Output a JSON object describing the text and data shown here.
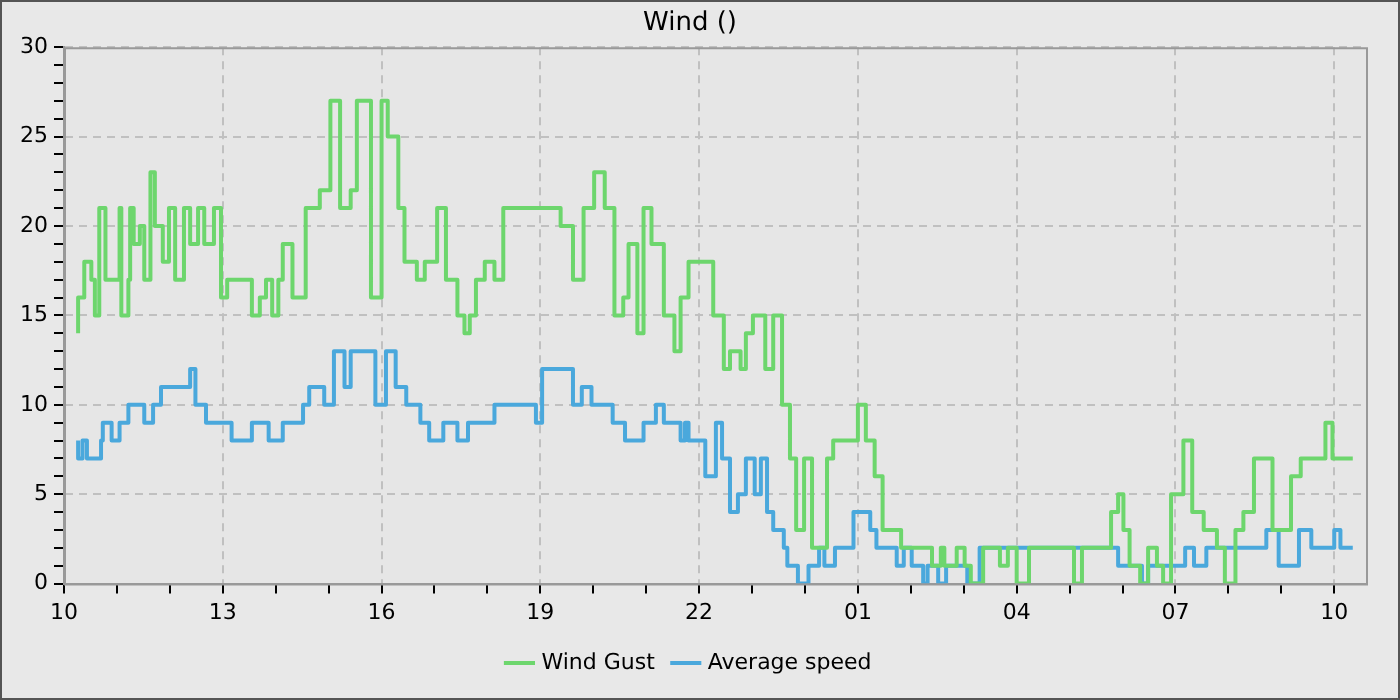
{
  "chart_data": {
    "type": "step",
    "title": "Wind ()",
    "legend": "bottom",
    "grid": true,
    "line_style": "solid",
    "marker": "none",
    "xlim": [
      "--01-01T10:00",
      "--01-02T10:36"
    ],
    "xticks": [
      {
        "value": "--01-01T10:00",
        "label": "10"
      },
      {
        "value": "--01-01T11:00",
        "label": null
      },
      {
        "value": "--01-01T12:00",
        "label": null
      },
      {
        "value": "--01-01T13:00",
        "label": "13"
      },
      {
        "value": "--01-01T14:00",
        "label": null
      },
      {
        "value": "--01-01T15:00",
        "label": null
      },
      {
        "value": "--01-01T16:00",
        "label": "16"
      },
      {
        "value": "--01-01T17:00",
        "label": null
      },
      {
        "value": "--01-01T18:00",
        "label": null
      },
      {
        "value": "--01-01T19:00",
        "label": "19"
      },
      {
        "value": "--01-01T20:00",
        "label": null
      },
      {
        "value": "--01-01T21:00",
        "label": null
      },
      {
        "value": "--01-01T22:00",
        "label": "22"
      },
      {
        "value": "--01-01T23:00",
        "label": null
      },
      {
        "value": "--01-02T00:00",
        "label": null
      },
      {
        "value": "--01-02T01:00",
        "label": "01"
      },
      {
        "value": "--01-02T02:00",
        "label": null
      },
      {
        "value": "--01-02T03:00",
        "label": null
      },
      {
        "value": "--01-02T04:00",
        "label": "04"
      },
      {
        "value": "--01-02T05:00",
        "label": null
      },
      {
        "value": "--01-02T06:00",
        "label": null
      },
      {
        "value": "--01-02T07:00",
        "label": "07"
      },
      {
        "value": "--01-02T08:00",
        "label": null
      },
      {
        "value": "--01-02T09:00",
        "label": null
      },
      {
        "value": "--01-02T10:00",
        "label": "10"
      }
    ],
    "ylim": [
      0,
      30
    ],
    "yticks": [
      0,
      {
        "value": 1,
        "label": null
      },
      {
        "value": 2,
        "label": null
      },
      {
        "value": 3,
        "label": null
      },
      {
        "value": 4,
        "label": null
      },
      5,
      {
        "value": 6,
        "label": null
      },
      {
        "value": 7,
        "label": null
      },
      {
        "value": 8,
        "label": null
      },
      {
        "value": 9,
        "label": null
      },
      10,
      {
        "value": 11,
        "label": null
      },
      {
        "value": 12,
        "label": null
      },
      {
        "value": 13,
        "label": null
      },
      {
        "value": 14,
        "label": null
      },
      15,
      {
        "value": 16,
        "label": null
      },
      {
        "value": 17,
        "label": null
      },
      {
        "value": 18,
        "label": null
      },
      {
        "value": 19,
        "label": null
      },
      20,
      {
        "value": 21,
        "label": null
      },
      {
        "value": 22,
        "label": null
      },
      {
        "value": 23,
        "label": null
      },
      {
        "value": 24,
        "label": null
      },
      25,
      {
        "value": 26,
        "label": null
      },
      {
        "value": 27,
        "label": null
      },
      {
        "value": 28,
        "label": null
      },
      {
        "value": 29,
        "label": null
      },
      30
    ],
    "series": [
      {
        "name": "Wind Gust",
        "color": "#6dd66d",
        "x": [
          "--01-01T10:16",
          "--01-01T10:23",
          "--01-01T10:31",
          "--01-01T10:35",
          "--01-01T10:40",
          "--01-01T10:47",
          "--01-01T11:03",
          "--01-01T11:05",
          "--01-01T11:13",
          "--01-01T11:15",
          "--01-01T11:19",
          "--01-01T11:26",
          "--01-01T11:31",
          "--01-01T11:38",
          "--01-01T11:43",
          "--01-01T11:52",
          "--01-01T11:59",
          "--01-01T12:06",
          "--01-01T12:16",
          "--01-01T12:23",
          "--01-01T12:32",
          "--01-01T12:39",
          "--01-01T12:50",
          "--01-01T12:58",
          "--01-01T13:05",
          "--01-01T13:33",
          "--01-01T13:42",
          "--01-01T13:49",
          "--01-01T13:56",
          "--01-01T14:03",
          "--01-01T14:08",
          "--01-01T14:19",
          "--01-01T14:34",
          "--01-01T14:50",
          "--01-01T15:02",
          "--01-01T15:13",
          "--01-01T15:25",
          "--01-01T15:32",
          "--01-01T15:48",
          "--01-01T16:00",
          "--01-01T16:07",
          "--01-01T16:19",
          "--01-01T16:26",
          "--01-01T16:40",
          "--01-01T16:49",
          "--01-01T17:03",
          "--01-01T17:13",
          "--01-01T17:26",
          "--01-01T17:34",
          "--01-01T17:40",
          "--01-01T17:47",
          "--01-01T17:57",
          "--01-01T18:08",
          "--01-01T18:18",
          "--01-01T19:23",
          "--01-01T19:37",
          "--01-01T19:49",
          "--01-01T20:01",
          "--01-01T20:13",
          "--01-01T20:24",
          "--01-01T20:34",
          "--01-01T20:40",
          "--01-01T20:50",
          "--01-01T20:57",
          "--01-01T21:06",
          "--01-01T21:20",
          "--01-01T21:32",
          "--01-01T21:39",
          "--01-01T21:48",
          "--01-01T22:16",
          "--01-01T22:28",
          "--01-01T22:35",
          "--01-01T22:47",
          "--01-01T22:53",
          "--01-01T23:01",
          "--01-01T23:15",
          "--01-01T23:24",
          "--01-01T23:34",
          "--01-01T23:43",
          "--01-01T23:50",
          "--01-01T23:59",
          "--01-02T00:08",
          "--01-02T00:25",
          "--01-02T00:32",
          "--01-02T01:00",
          "--01-02T01:09",
          "--01-02T01:19",
          "--01-02T01:28",
          "--01-02T01:49",
          "--01-02T02:24",
          "--01-02T02:34",
          "--01-02T02:38",
          "--01-02T02:52",
          "--01-02T03:01",
          "--01-02T03:08",
          "--01-02T03:22",
          "--01-02T03:41",
          "--01-02T03:50",
          "--01-02T04:00",
          "--01-02T04:14",
          "--01-02T05:05",
          "--01-02T05:14",
          "--01-02T05:47",
          "--01-02T05:55",
          "--01-02T06:01",
          "--01-02T06:08",
          "--01-02T06:20",
          "--01-02T06:29",
          "--01-02T06:39",
          "--01-02T06:46",
          "--01-02T06:55",
          "--01-02T07:09",
          "--01-02T07:19",
          "--01-02T07:32",
          "--01-02T07:47",
          "--01-02T07:56",
          "--01-02T08:08",
          "--01-02T08:17",
          "--01-02T08:29",
          "--01-02T08:50",
          "--01-02T09:11",
          "--01-02T09:22",
          "--01-02T09:50",
          "--01-02T09:58",
          "--01-02T10:07",
          "--01-02T10:21"
        ],
        "values": [
          14,
          16,
          18,
          17,
          15,
          21,
          17,
          21,
          15,
          17,
          21,
          19,
          20,
          17,
          23,
          20,
          18,
          21,
          17,
          21,
          19,
          21,
          19,
          21,
          16,
          17,
          15,
          16,
          17,
          15,
          17,
          19,
          16,
          21,
          22,
          27,
          21,
          22,
          27,
          16,
          27,
          25,
          21,
          18,
          17,
          18,
          21,
          17,
          15,
          14,
          15,
          17,
          18,
          17,
          21,
          20,
          17,
          21,
          23,
          21,
          15,
          16,
          19,
          14,
          21,
          19,
          15,
          13,
          16,
          18,
          15,
          12,
          13,
          12,
          14,
          15,
          12,
          15,
          10,
          7,
          3,
          7,
          2,
          7,
          8,
          10,
          8,
          6,
          3,
          2,
          1,
          2,
          1,
          2,
          1,
          0,
          2,
          1,
          2,
          0,
          2,
          0,
          2,
          4,
          5,
          3,
          1,
          0,
          2,
          1,
          0,
          5,
          8,
          4,
          3,
          2,
          0,
          3,
          4,
          7,
          3,
          6,
          7,
          9,
          7,
          7
        ]
      },
      {
        "name": "Average speed",
        "color": "#4aa8dc",
        "x": [
          "--01-01T10:16",
          "--01-01T10:21",
          "--01-01T10:26",
          "--01-01T10:42",
          "--01-01T10:44",
          "--01-01T10:54",
          "--01-01T11:03",
          "--01-01T11:13",
          "--01-01T11:31",
          "--01-01T11:41",
          "--01-01T11:50",
          "--01-01T12:23",
          "--01-01T12:29",
          "--01-01T12:41",
          "--01-01T13:10",
          "--01-01T13:33",
          "--01-01T13:52",
          "--01-01T14:08",
          "--01-01T14:31",
          "--01-01T14:38",
          "--01-01T14:55",
          "--01-01T15:06",
          "--01-01T15:18",
          "--01-01T15:25",
          "--01-01T15:53",
          "--01-01T16:05",
          "--01-01T16:16",
          "--01-01T16:28",
          "--01-01T16:44",
          "--01-01T16:54",
          "--01-01T17:10",
          "--01-01T17:26",
          "--01-01T17:38",
          "--01-01T18:08",
          "--01-01T18:55",
          "--01-01T19:02",
          "--01-01T19:37",
          "--01-01T19:47",
          "--01-01T19:58",
          "--01-01T20:22",
          "--01-01T20:36",
          "--01-01T20:57",
          "--01-01T21:11",
          "--01-01T21:20",
          "--01-01T21:39",
          "--01-01T21:44",
          "--01-01T21:48",
          "--01-01T22:07",
          "--01-01T22:19",
          "--01-01T22:26",
          "--01-01T22:35",
          "--01-01T22:44",
          "--01-01T22:53",
          "--01-01T23:03",
          "--01-01T23:10",
          "--01-01T23:17",
          "--01-01T23:24",
          "--01-01T23:36",
          "--01-01T23:40",
          "--01-01T23:52",
          "--01-02T00:04",
          "--01-02T00:16",
          "--01-02T00:22",
          "--01-02T00:34",
          "--01-02T00:55",
          "--01-02T01:14",
          "--01-02T01:21",
          "--01-02T01:44",
          "--01-02T01:52",
          "--01-02T02:01",
          "--01-02T02:14",
          "--01-02T02:19",
          "--01-02T02:31",
          "--01-02T02:40",
          "--01-02T03:04",
          "--01-02T03:18",
          "--01-02T05:55",
          "--01-02T06:22",
          "--01-02T06:29",
          "--01-02T07:11",
          "--01-02T07:21",
          "--01-02T07:35",
          "--01-02T08:43",
          "--01-02T08:57",
          "--01-02T09:20",
          "--01-02T09:34",
          "--01-02T10:00",
          "--01-02T10:07",
          "--01-02T10:21"
        ],
        "values": [
          8,
          7,
          8,
          7,
          8,
          9,
          8,
          9,
          10,
          9,
          10,
          11,
          12,
          10,
          9,
          8,
          9,
          8,
          9,
          10,
          11,
          10,
          13,
          11,
          13,
          10,
          13,
          11,
          10,
          9,
          8,
          9,
          8,
          9,
          10,
          9,
          12,
          10,
          11,
          10,
          9,
          8,
          9,
          10,
          9,
          8,
          9,
          8,
          6,
          9,
          7,
          4,
          5,
          7,
          5,
          7,
          4,
          3,
          2,
          1,
          0,
          1,
          2,
          1,
          2,
          4,
          3,
          2,
          1,
          2,
          1,
          0,
          1,
          0,
          1,
          0,
          2,
          1,
          0,
          1,
          2,
          1,
          2,
          3,
          1,
          3,
          2,
          3,
          2
        ]
      }
    ]
  }
}
